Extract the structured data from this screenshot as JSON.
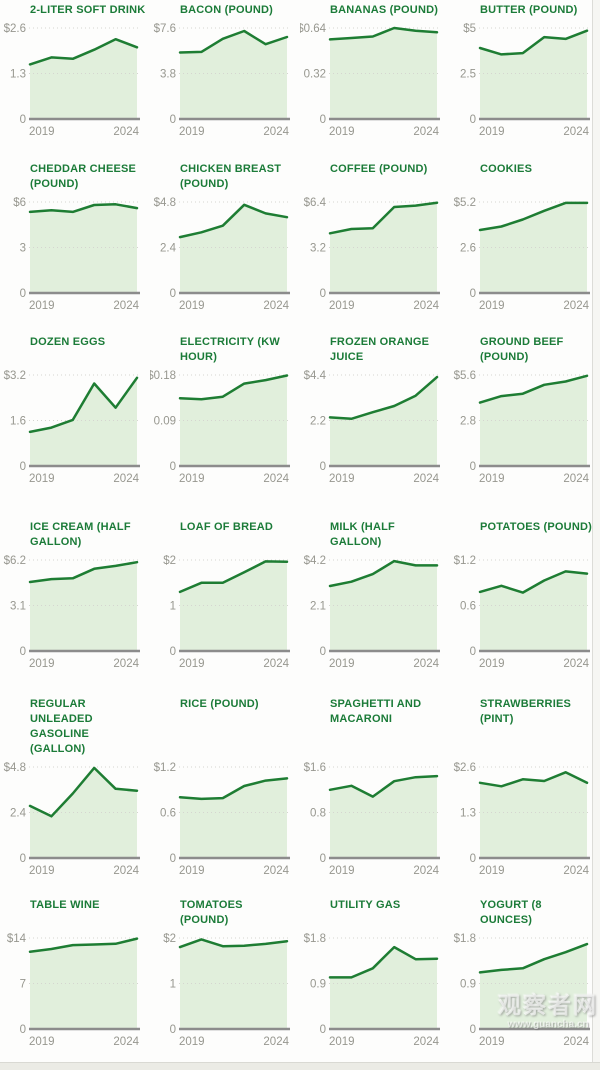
{
  "page": {
    "x_start_label": "2019",
    "x_end_label": "2024"
  },
  "colors": {
    "line": "#1e7d33",
    "fill": "#e1efdc",
    "title": "#1b7b38",
    "tick_text": "#97978f",
    "gridline": "#d5d5d0",
    "zero_axis": "#8c8c8c"
  },
  "watermark": {
    "name": "观察者网",
    "url": "www.guancha.cn"
  },
  "chart_data": [
    {
      "type": "area",
      "title": "2-LITER SOFT DRINK",
      "title_lines": [
        "2-LITER SOFT DRINK"
      ],
      "x": [
        2019,
        2020,
        2021,
        2022,
        2023,
        2024
      ],
      "x_labels": [
        "2019",
        "2024"
      ],
      "values": [
        1.56,
        1.76,
        1.72,
        1.98,
        2.28,
        2.05
      ],
      "ylim": [
        0,
        2.6
      ],
      "yticks": [
        "$2.6",
        "1.3",
        "0"
      ]
    },
    {
      "type": "area",
      "title": "BACON (POUND)",
      "title_lines": [
        "BACON (POUND)"
      ],
      "x": [
        2019,
        2020,
        2021,
        2022,
        2023,
        2024
      ],
      "x_labels": [
        "2019",
        "2024"
      ],
      "values": [
        5.55,
        5.6,
        6.7,
        7.35,
        6.25,
        6.85
      ],
      "ylim": [
        0,
        7.6
      ],
      "yticks": [
        "$7.6",
        "3.8",
        "0"
      ]
    },
    {
      "type": "area",
      "title": "BANANAS (POUND)",
      "title_lines": [
        "BANANAS (POUND)"
      ],
      "x": [
        2019,
        2020,
        2021,
        2022,
        2023,
        2024
      ],
      "x_labels": [
        "2019",
        "2024"
      ],
      "values": [
        0.56,
        0.57,
        0.58,
        0.64,
        0.62,
        0.61
      ],
      "ylim": [
        0,
        0.64
      ],
      "yticks": [
        "$0.64",
        "0.32",
        "0"
      ]
    },
    {
      "type": "area",
      "title": "BUTTER (POUND)",
      "title_lines": [
        "BUTTER (POUND)"
      ],
      "x": [
        2019,
        2020,
        2021,
        2022,
        2023,
        2024
      ],
      "x_labels": [
        "2019",
        "2024"
      ],
      "values": [
        3.9,
        3.55,
        3.62,
        4.5,
        4.4,
        4.85
      ],
      "ylim": [
        0,
        5
      ],
      "yticks": [
        "$5",
        "2.5",
        "0"
      ]
    },
    {
      "type": "area",
      "title": "CHEDDAR CHEESE (POUND)",
      "title_lines": [
        "CHEDDAR CHEESE",
        "(POUND)"
      ],
      "x": [
        2019,
        2020,
        2021,
        2022,
        2023,
        2024
      ],
      "x_labels": [
        "2019",
        "2024"
      ],
      "values": [
        5.35,
        5.45,
        5.35,
        5.8,
        5.85,
        5.6
      ],
      "ylim": [
        0,
        6
      ],
      "yticks": [
        "$6",
        "3",
        "0"
      ]
    },
    {
      "type": "area",
      "title": "CHICKEN BREAST (POUND)",
      "title_lines": [
        "CHICKEN BREAST",
        "(POUND)"
      ],
      "x": [
        2019,
        2020,
        2021,
        2022,
        2023,
        2024
      ],
      "x_labels": [
        "2019",
        "2024"
      ],
      "values": [
        2.95,
        3.2,
        3.55,
        4.65,
        4.2,
        4.0
      ],
      "ylim": [
        0,
        4.8
      ],
      "yticks": [
        "$4.8",
        "2.4",
        "0"
      ]
    },
    {
      "type": "area",
      "title": "COFFEE (POUND)",
      "title_lines": [
        "COFFEE (POUND)"
      ],
      "x": [
        2019,
        2020,
        2021,
        2022,
        2023,
        2024
      ],
      "x_labels": [
        "2019",
        "2024"
      ],
      "values": [
        4.2,
        4.5,
        4.55,
        6.05,
        6.15,
        6.35
      ],
      "ylim": [
        0,
        6.4
      ],
      "yticks": [
        "$6.4",
        "3.2",
        "0"
      ]
    },
    {
      "type": "area",
      "title": "COOKIES",
      "title_lines": [
        "COOKIES"
      ],
      "x": [
        2019,
        2020,
        2021,
        2022,
        2023,
        2024
      ],
      "x_labels": [
        "2019",
        "2024"
      ],
      "values": [
        3.6,
        3.8,
        4.2,
        4.7,
        5.15,
        5.15
      ],
      "ylim": [
        0,
        5.2
      ],
      "yticks": [
        "$5.2",
        "2.6",
        "0"
      ]
    },
    {
      "type": "area",
      "title": "DOZEN EGGS",
      "title_lines": [
        "DOZEN EGGS"
      ],
      "x": [
        2019,
        2020,
        2021,
        2022,
        2023,
        2024
      ],
      "x_labels": [
        "2019",
        "2024"
      ],
      "values": [
        1.2,
        1.35,
        1.62,
        2.9,
        2.05,
        3.1
      ],
      "ylim": [
        0,
        3.2
      ],
      "yticks": [
        "$3.2",
        "1.6",
        "0"
      ]
    },
    {
      "type": "area",
      "title": "ELECTRICITY (KW HOUR)",
      "title_lines": [
        "ELECTRICITY (KW",
        "HOUR)"
      ],
      "x": [
        2019,
        2020,
        2021,
        2022,
        2023,
        2024
      ],
      "x_labels": [
        "2019",
        "2024"
      ],
      "values": [
        0.134,
        0.132,
        0.137,
        0.163,
        0.17,
        0.179
      ],
      "ylim": [
        0,
        0.18
      ],
      "yticks": [
        "$0.18",
        "0.09",
        "0"
      ]
    },
    {
      "type": "area",
      "title": "FROZEN ORANGE JUICE",
      "title_lines": [
        "FROZEN ORANGE",
        "JUICE"
      ],
      "x": [
        2019,
        2020,
        2021,
        2022,
        2023,
        2024
      ],
      "x_labels": [
        "2019",
        "2024"
      ],
      "values": [
        2.35,
        2.28,
        2.6,
        2.9,
        3.4,
        4.3
      ],
      "ylim": [
        0,
        4.4
      ],
      "yticks": [
        "$4.4",
        "2.2",
        "0"
      ]
    },
    {
      "type": "area",
      "title": "GROUND BEEF (POUND)",
      "title_lines": [
        "GROUND BEEF",
        "(POUND)"
      ],
      "x": [
        2019,
        2020,
        2021,
        2022,
        2023,
        2024
      ],
      "x_labels": [
        "2019",
        "2024"
      ],
      "values": [
        3.9,
        4.3,
        4.45,
        5.0,
        5.2,
        5.55
      ],
      "ylim": [
        0,
        5.6
      ],
      "yticks": [
        "$5.6",
        "2.8",
        "0"
      ]
    },
    {
      "type": "area",
      "title": "ICE CREAM (HALF GALLON)",
      "title_lines": [
        "ICE CREAM (HALF",
        "GALLON)"
      ],
      "x": [
        2019,
        2020,
        2021,
        2022,
        2023,
        2024
      ],
      "x_labels": [
        "2019",
        "2024"
      ],
      "values": [
        4.7,
        4.9,
        4.95,
        5.6,
        5.8,
        6.05
      ],
      "ylim": [
        0,
        6.2
      ],
      "yticks": [
        "$6.2",
        "3.1",
        "0"
      ]
    },
    {
      "type": "area",
      "title": "LOAF OF BREAD",
      "title_lines": [
        "LOAF OF BREAD"
      ],
      "x": [
        2019,
        2020,
        2021,
        2022,
        2023,
        2024
      ],
      "x_labels": [
        "2019",
        "2024"
      ],
      "values": [
        1.3,
        1.5,
        1.5,
        1.73,
        1.97,
        1.96
      ],
      "ylim": [
        0,
        2
      ],
      "yticks": [
        "$2",
        "1",
        "0"
      ]
    },
    {
      "type": "area",
      "title": "MILK (HALF GALLON)",
      "title_lines": [
        "MILK (HALF",
        "GALLON)"
      ],
      "x": [
        2019,
        2020,
        2021,
        2022,
        2023,
        2024
      ],
      "x_labels": [
        "2019",
        "2024"
      ],
      "values": [
        3.0,
        3.2,
        3.55,
        4.15,
        3.95,
        3.95
      ],
      "ylim": [
        0,
        4.2
      ],
      "yticks": [
        "$4.2",
        "2.1",
        "0"
      ]
    },
    {
      "type": "area",
      "title": "POTATOES (POUND)",
      "title_lines": [
        "POTATOES (POUND)"
      ],
      "x": [
        2019,
        2020,
        2021,
        2022,
        2023,
        2024
      ],
      "x_labels": [
        "2019",
        "2024"
      ],
      "values": [
        0.78,
        0.86,
        0.77,
        0.93,
        1.05,
        1.02
      ],
      "ylim": [
        0,
        1.2
      ],
      "yticks": [
        "$1.2",
        "0.6",
        "0"
      ]
    },
    {
      "type": "area",
      "title": "REGULAR UNLEADED GASOLINE (GALLON)",
      "title_lines": [
        "REGULAR",
        "UNLEADED",
        "GASOLINE",
        "(GALLON)"
      ],
      "x": [
        2019,
        2020,
        2021,
        2022,
        2023,
        2024
      ],
      "x_labels": [
        "2019",
        "2024"
      ],
      "values": [
        2.75,
        2.2,
        3.4,
        4.75,
        3.65,
        3.55
      ],
      "ylim": [
        0,
        4.8
      ],
      "yticks": [
        "$4.8",
        "2.4",
        "0"
      ]
    },
    {
      "type": "area",
      "title": "RICE (POUND)",
      "title_lines": [
        "RICE (POUND)"
      ],
      "x": [
        2019,
        2020,
        2021,
        2022,
        2023,
        2024
      ],
      "x_labels": [
        "2019",
        "2024"
      ],
      "values": [
        0.8,
        0.78,
        0.79,
        0.95,
        1.02,
        1.05
      ],
      "ylim": [
        0,
        1.2
      ],
      "yticks": [
        "$1.2",
        "0.6",
        "0"
      ]
    },
    {
      "type": "area",
      "title": "SPAGHETTI AND MACARONI",
      "title_lines": [
        "SPAGHETTI AND",
        "MACARONI"
      ],
      "x": [
        2019,
        2020,
        2021,
        2022,
        2023,
        2024
      ],
      "x_labels": [
        "2019",
        "2024"
      ],
      "values": [
        1.2,
        1.27,
        1.08,
        1.35,
        1.42,
        1.44
      ],
      "ylim": [
        0,
        1.6
      ],
      "yticks": [
        "$1.6",
        "0.8",
        "0"
      ]
    },
    {
      "type": "area",
      "title": "STRAWBERRIES (PINT)",
      "title_lines": [
        "STRAWBERRIES",
        "(PINT)"
      ],
      "x": [
        2019,
        2020,
        2021,
        2022,
        2023,
        2024
      ],
      "x_labels": [
        "2019",
        "2024"
      ],
      "values": [
        2.15,
        2.05,
        2.25,
        2.2,
        2.45,
        2.15
      ],
      "ylim": [
        0,
        2.6
      ],
      "yticks": [
        "$2.6",
        "1.3",
        "0"
      ]
    },
    {
      "type": "area",
      "title": "TABLE WINE",
      "title_lines": [
        "TABLE WINE"
      ],
      "x": [
        2019,
        2020,
        2021,
        2022,
        2023,
        2024
      ],
      "x_labels": [
        "2019",
        "2024"
      ],
      "values": [
        11.9,
        12.3,
        12.9,
        13.0,
        13.1,
        13.9
      ],
      "ylim": [
        0,
        14
      ],
      "yticks": [
        "$14",
        "7",
        "0"
      ]
    },
    {
      "type": "area",
      "title": "TOMATOES (POUND)",
      "title_lines": [
        "TOMATOES",
        "(POUND)"
      ],
      "x": [
        2019,
        2020,
        2021,
        2022,
        2023,
        2024
      ],
      "x_labels": [
        "2019",
        "2024"
      ],
      "values": [
        1.8,
        1.97,
        1.82,
        1.83,
        1.87,
        1.93
      ],
      "ylim": [
        0,
        2
      ],
      "yticks": [
        "$2",
        "1",
        "0"
      ]
    },
    {
      "type": "area",
      "title": "UTILITY GAS",
      "title_lines": [
        "UTILITY GAS"
      ],
      "x": [
        2019,
        2020,
        2021,
        2022,
        2023,
        2024
      ],
      "x_labels": [
        "2019",
        "2024"
      ],
      "values": [
        1.02,
        1.02,
        1.2,
        1.62,
        1.38,
        1.39
      ],
      "ylim": [
        0,
        1.8
      ],
      "yticks": [
        "$1.8",
        "0.9",
        "0"
      ]
    },
    {
      "type": "area",
      "title": "YOGURT (8 OUNCES)",
      "title_lines": [
        "YOGURT (8",
        "OUNCES)"
      ],
      "x": [
        2019,
        2020,
        2021,
        2022,
        2023,
        2024
      ],
      "x_labels": [
        "2019",
        "2024"
      ],
      "values": [
        1.12,
        1.17,
        1.2,
        1.38,
        1.52,
        1.68
      ],
      "ylim": [
        0,
        1.8
      ],
      "yticks": [
        "$1.8",
        "0.9",
        "0"
      ]
    }
  ]
}
